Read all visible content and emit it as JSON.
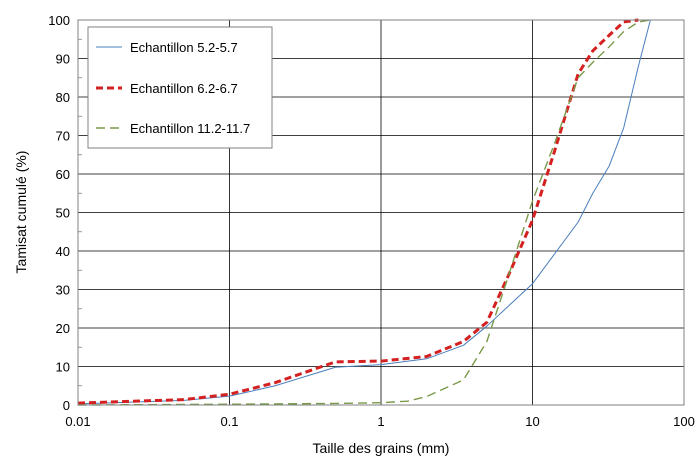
{
  "chart_data": {
    "type": "line",
    "xlabel": "Taille des grains (mm)",
    "ylabel": "Tamisat cumulé (%)",
    "xscale": "log",
    "xlim": [
      0.01,
      100
    ],
    "ylim": [
      0,
      100
    ],
    "grid": true,
    "legend_position": "top-left",
    "x_ticks": [
      {
        "value": 0.01,
        "label": "0.01"
      },
      {
        "value": 0.1,
        "label": "0.1"
      },
      {
        "value": 1,
        "label": "1"
      },
      {
        "value": 10,
        "label": "10"
      },
      {
        "value": 100,
        "label": "100"
      }
    ],
    "y_ticks": [
      {
        "value": 0,
        "label": "0"
      },
      {
        "value": 10,
        "label": "10"
      },
      {
        "value": 20,
        "label": "20"
      },
      {
        "value": 30,
        "label": "30"
      },
      {
        "value": 40,
        "label": "40"
      },
      {
        "value": 50,
        "label": "50"
      },
      {
        "value": 60,
        "label": "60"
      },
      {
        "value": 70,
        "label": "70"
      },
      {
        "value": 80,
        "label": "80"
      },
      {
        "value": 90,
        "label": "90"
      },
      {
        "value": 100,
        "label": "100"
      }
    ],
    "series": [
      {
        "name": "Echantillon 5.2-5.7",
        "color": "#4a7ebb",
        "style": "solid",
        "points": [
          [
            0.01,
            0.3
          ],
          [
            0.05,
            1.2
          ],
          [
            0.1,
            2.3
          ],
          [
            0.2,
            5
          ],
          [
            0.5,
            9.8
          ],
          [
            1,
            10.5
          ],
          [
            2,
            12
          ],
          [
            3.5,
            15.5
          ],
          [
            5,
            20.5
          ],
          [
            10,
            31.5
          ],
          [
            20,
            47.5
          ],
          [
            25,
            55
          ],
          [
            32,
            62
          ],
          [
            40,
            72
          ],
          [
            50,
            88
          ],
          [
            60,
            100
          ]
        ]
      },
      {
        "name": "Echantillon 6.2-6.7",
        "color": "#d42020",
        "style": "dashed-bold",
        "points": [
          [
            0.01,
            0.5
          ],
          [
            0.05,
            1.4
          ],
          [
            0.1,
            2.8
          ],
          [
            0.2,
            5.8
          ],
          [
            0.5,
            11.2
          ],
          [
            1,
            11.4
          ],
          [
            2,
            12.6
          ],
          [
            3.5,
            16.5
          ],
          [
            5,
            21.5
          ],
          [
            7,
            34
          ],
          [
            10,
            48
          ],
          [
            14,
            66
          ],
          [
            20,
            86
          ],
          [
            25,
            92
          ],
          [
            32,
            96
          ],
          [
            40,
            99.5
          ],
          [
            50,
            100
          ]
        ]
      },
      {
        "name": "Echantillon 11.2-11.7",
        "color": "#7a9a4a",
        "style": "dashed",
        "points": [
          [
            0.01,
            0
          ],
          [
            0.1,
            0.2
          ],
          [
            0.5,
            0.4
          ],
          [
            1,
            0.6
          ],
          [
            1.5,
            1
          ],
          [
            2,
            2.2
          ],
          [
            3.5,
            6.5
          ],
          [
            5,
            16.5
          ],
          [
            7,
            34
          ],
          [
            10,
            53
          ],
          [
            14,
            68
          ],
          [
            20,
            85
          ],
          [
            25,
            89
          ],
          [
            32,
            93
          ],
          [
            40,
            97
          ],
          [
            50,
            99.5
          ],
          [
            60,
            100
          ]
        ]
      }
    ]
  }
}
